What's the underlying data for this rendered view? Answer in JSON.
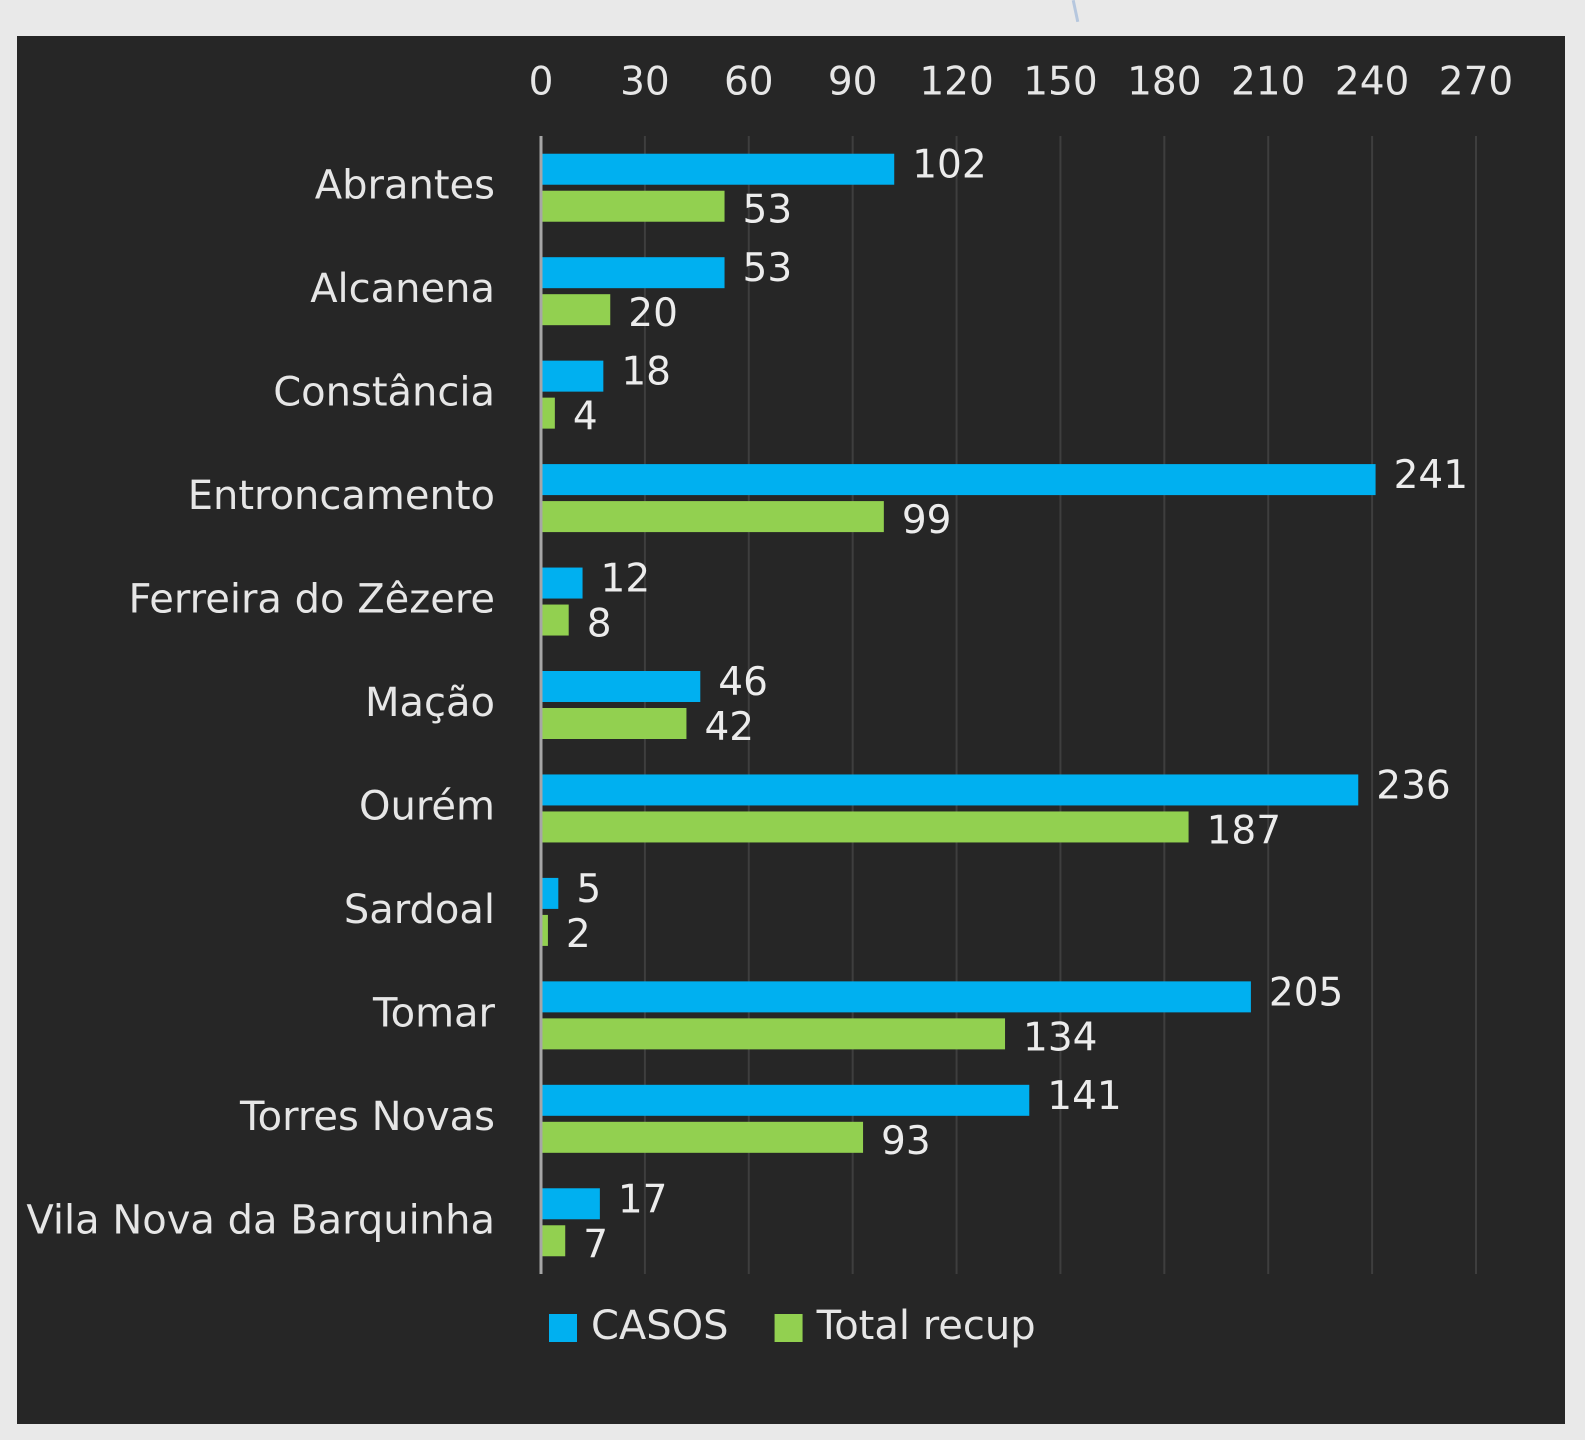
{
  "chart_data": {
    "type": "bar",
    "orientation": "horizontal",
    "categories": [
      "Abrantes",
      "Alcanena",
      "Constância",
      "Entroncamento",
      "Ferreira do Zêzere",
      "Mação",
      "Ourém",
      "Sardoal",
      "Tomar",
      "Torres Novas",
      "Vila Nova da Barquinha"
    ],
    "series": [
      {
        "name": "CASOS",
        "color": "#00b0f0",
        "values": [
          102,
          53,
          18,
          241,
          12,
          46,
          236,
          5,
          205,
          141,
          17
        ]
      },
      {
        "name": "Total recup",
        "color": "#92d050",
        "values": [
          53,
          20,
          4,
          99,
          8,
          42,
          187,
          2,
          134,
          93,
          7
        ]
      }
    ],
    "x_ticks": [
      "0",
      "30",
      "60",
      "90",
      "120",
      "150",
      "180",
      "210",
      "240",
      "270"
    ],
    "xlim": [
      0,
      270
    ],
    "x_axis_position": "top",
    "grid": true,
    "legend_position": "bottom",
    "data_labels": true,
    "background": "#262626"
  }
}
